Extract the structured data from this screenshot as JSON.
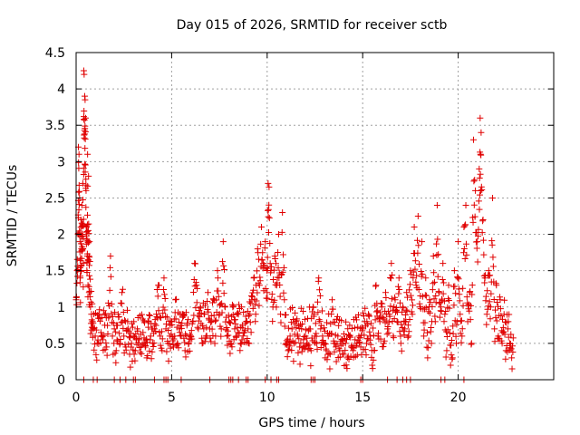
{
  "chart_data": {
    "type": "scatter",
    "title": "Day 015 of 2026, SRMTID for receiver sctb",
    "xlabel": "GPS time / hours",
    "ylabel": "SRMTID / TECUs",
    "xlim": [
      0,
      25
    ],
    "ylim": [
      0,
      4.5
    ],
    "xticks": [
      0,
      5,
      10,
      15,
      20
    ],
    "xtick_labels": [
      "0",
      "5",
      "10",
      "15",
      "20"
    ],
    "yticks": [
      0,
      0.5,
      1,
      1.5,
      2,
      2.5,
      3,
      3.5,
      4,
      4.5
    ],
    "ytick_labels": [
      "0",
      "0.5",
      "1",
      "1.5",
      "2",
      "2.5",
      "3",
      "3.5",
      "4",
      "4.5"
    ],
    "grid": true,
    "marker": "+",
    "color": "#e00000",
    "series": [
      {
        "name": "SRMTID",
        "points": [
          [
            0.0,
            1.1
          ],
          [
            0.05,
            1.5
          ],
          [
            0.1,
            2.0
          ],
          [
            0.12,
            3.2
          ],
          [
            0.15,
            3.1
          ],
          [
            0.18,
            2.5
          ],
          [
            0.2,
            1.9
          ],
          [
            0.22,
            1.4
          ],
          [
            0.25,
            2.2
          ],
          [
            0.28,
            1.8
          ],
          [
            0.3,
            2.4
          ],
          [
            0.33,
            2.0
          ],
          [
            0.35,
            2.7
          ],
          [
            0.38,
            1.6
          ],
          [
            0.4,
            4.25
          ],
          [
            0.42,
            4.2
          ],
          [
            0.45,
            3.9
          ],
          [
            0.47,
            3.85
          ],
          [
            0.5,
            3.6
          ],
          [
            0.52,
            2.6
          ],
          [
            0.55,
            2.1
          ],
          [
            0.58,
            1.7
          ],
          [
            0.6,
            3.1
          ],
          [
            0.62,
            1.3
          ],
          [
            0.65,
            2.8
          ],
          [
            0.68,
            1.2
          ],
          [
            0.7,
            1.9
          ],
          [
            0.75,
            1.0
          ],
          [
            0.8,
            0.9
          ],
          [
            0.85,
            0.8
          ],
          [
            0.9,
            0.7
          ],
          [
            1.0,
            0.6
          ],
          [
            1.1,
            0.5
          ],
          [
            1.2,
            0.9
          ],
          [
            1.3,
            0.65
          ],
          [
            1.4,
            0.55
          ],
          [
            1.5,
            0.75
          ],
          [
            1.6,
            0.45
          ],
          [
            1.7,
            0.85
          ],
          [
            1.8,
            1.7
          ],
          [
            1.9,
            0.6
          ],
          [
            2.0,
            0.7
          ],
          [
            2.1,
            0.4
          ],
          [
            2.2,
            0.9
          ],
          [
            2.3,
            0.5
          ],
          [
            2.4,
            1.2
          ],
          [
            2.5,
            0.6
          ],
          [
            2.6,
            0.45
          ],
          [
            2.7,
            0.8
          ],
          [
            2.8,
            0.35
          ],
          [
            2.9,
            0.5
          ],
          [
            3.0,
            0.6
          ],
          [
            3.1,
            0.4
          ],
          [
            3.2,
            0.7
          ],
          [
            3.3,
            0.55
          ],
          [
            3.4,
            0.45
          ],
          [
            3.5,
            0.65
          ],
          [
            3.6,
            0.5
          ],
          [
            3.7,
            0.3
          ],
          [
            3.8,
            0.8
          ],
          [
            3.9,
            0.6
          ],
          [
            4.0,
            0.5
          ],
          [
            4.1,
            0.7
          ],
          [
            4.2,
            0.9
          ],
          [
            4.3,
            1.3
          ],
          [
            4.4,
            0.6
          ],
          [
            4.5,
            0.4
          ],
          [
            4.6,
            1.4
          ],
          [
            4.7,
            0.7
          ],
          [
            4.8,
            0.5
          ],
          [
            4.9,
            0.6
          ],
          [
            5.0,
            0.8
          ],
          [
            5.1,
            0.45
          ],
          [
            5.2,
            1.1
          ],
          [
            5.3,
            0.5
          ],
          [
            5.4,
            0.7
          ],
          [
            5.5,
            0.6
          ],
          [
            5.6,
            0.9
          ],
          [
            5.7,
            0.4
          ],
          [
            5.8,
            0.75
          ],
          [
            5.9,
            0.5
          ],
          [
            6.0,
            0.6
          ],
          [
            6.1,
            0.8
          ],
          [
            6.2,
            1.6
          ],
          [
            6.3,
            1.3
          ],
          [
            6.4,
            0.7
          ],
          [
            6.5,
            1.0
          ],
          [
            6.6,
            0.5
          ],
          [
            6.7,
            0.9
          ],
          [
            6.8,
            0.6
          ],
          [
            6.9,
            1.2
          ],
          [
            7.0,
            0.7
          ],
          [
            7.1,
            0.8
          ],
          [
            7.2,
            1.1
          ],
          [
            7.3,
            0.6
          ],
          [
            7.4,
            1.5
          ],
          [
            7.5,
            0.9
          ],
          [
            7.6,
            0.7
          ],
          [
            7.7,
            1.9
          ],
          [
            7.8,
            1.0
          ],
          [
            7.9,
            0.6
          ],
          [
            8.0,
            0.8
          ],
          [
            8.1,
            0.5
          ],
          [
            8.2,
            1.0
          ],
          [
            8.3,
            0.7
          ],
          [
            8.4,
            0.6
          ],
          [
            8.5,
            0.9
          ],
          [
            8.6,
            0.5
          ],
          [
            8.7,
            0.75
          ],
          [
            8.8,
            0.65
          ],
          [
            8.9,
            0.8
          ],
          [
            9.0,
            0.7
          ],
          [
            9.1,
            0.9
          ],
          [
            9.2,
            1.1
          ],
          [
            9.3,
            1.4
          ],
          [
            9.4,
            0.9
          ],
          [
            9.5,
            1.8
          ],
          [
            9.6,
            1.3
          ],
          [
            9.7,
            2.1
          ],
          [
            9.8,
            1.6
          ],
          [
            9.9,
            1.9
          ],
          [
            10.0,
            1.2
          ],
          [
            10.05,
            2.7
          ],
          [
            10.1,
            2.65
          ],
          [
            10.2,
            1.5
          ],
          [
            10.3,
            1.0
          ],
          [
            10.4,
            1.7
          ],
          [
            10.5,
            1.3
          ],
          [
            10.6,
            2.0
          ],
          [
            10.7,
            0.9
          ],
          [
            10.8,
            2.3
          ],
          [
            10.9,
            1.1
          ],
          [
            11.0,
            0.5
          ],
          [
            11.1,
            0.4
          ],
          [
            11.2,
            0.6
          ],
          [
            11.3,
            0.7
          ],
          [
            11.4,
            0.5
          ],
          [
            11.5,
            0.8
          ],
          [
            11.6,
            0.6
          ],
          [
            11.7,
            0.45
          ],
          [
            11.8,
            0.7
          ],
          [
            11.9,
            0.55
          ],
          [
            12.0,
            0.6
          ],
          [
            12.1,
            0.5
          ],
          [
            12.2,
            0.7
          ],
          [
            12.3,
            0.4
          ],
          [
            12.4,
            1.0
          ],
          [
            12.5,
            0.6
          ],
          [
            12.6,
            0.5
          ],
          [
            12.7,
            1.4
          ],
          [
            12.8,
            0.7
          ],
          [
            12.9,
            0.6
          ],
          [
            13.0,
            0.5
          ],
          [
            13.1,
            0.4
          ],
          [
            13.2,
            0.6
          ],
          [
            13.3,
            0.35
          ],
          [
            13.4,
            1.1
          ],
          [
            13.5,
            0.5
          ],
          [
            13.6,
            0.45
          ],
          [
            13.7,
            0.6
          ],
          [
            13.8,
            0.4
          ],
          [
            13.9,
            0.55
          ],
          [
            14.0,
            0.35
          ],
          [
            14.1,
            0.5
          ],
          [
            14.2,
            0.3
          ],
          [
            14.3,
            0.6
          ],
          [
            14.4,
            0.45
          ],
          [
            14.5,
            0.4
          ],
          [
            14.6,
            0.55
          ],
          [
            14.7,
            0.5
          ],
          [
            14.8,
            0.6
          ],
          [
            14.9,
            0.45
          ],
          [
            15.0,
            0.7
          ],
          [
            15.1,
            0.8
          ],
          [
            15.2,
            0.5
          ],
          [
            15.3,
            0.9
          ],
          [
            15.4,
            0.6
          ],
          [
            15.5,
            0.2
          ],
          [
            15.6,
            0.4
          ],
          [
            15.7,
            1.3
          ],
          [
            15.8,
            0.6
          ],
          [
            15.9,
            0.8
          ],
          [
            16.0,
            1.0
          ],
          [
            16.1,
            0.5
          ],
          [
            16.2,
            1.2
          ],
          [
            16.3,
            0.7
          ],
          [
            16.4,
            0.9
          ],
          [
            16.5,
            1.6
          ],
          [
            16.6,
            0.6
          ],
          [
            16.7,
            1.1
          ],
          [
            16.8,
            0.8
          ],
          [
            16.9,
            1.4
          ],
          [
            17.0,
            0.5
          ],
          [
            17.1,
            1.0
          ],
          [
            17.2,
            0.7
          ],
          [
            17.3,
            1.2
          ],
          [
            17.4,
            0.6
          ],
          [
            17.5,
            1.5
          ],
          [
            17.6,
            0.9
          ],
          [
            17.7,
            2.1
          ],
          [
            17.8,
            1.3
          ],
          [
            17.9,
            2.25
          ],
          [
            18.0,
            1.0
          ],
          [
            18.1,
            1.9
          ],
          [
            18.2,
            0.6
          ],
          [
            18.3,
            1.4
          ],
          [
            18.4,
            0.3
          ],
          [
            18.5,
            1.1
          ],
          [
            18.6,
            0.5
          ],
          [
            18.7,
            1.7
          ],
          [
            18.8,
            0.8
          ],
          [
            18.9,
            2.4
          ],
          [
            19.0,
            1.2
          ],
          [
            19.1,
            1.0
          ],
          [
            19.2,
            1.6
          ],
          [
            19.3,
            0.9
          ],
          [
            19.4,
            0.4
          ],
          [
            19.5,
            1.3
          ],
          [
            19.6,
            0.2
          ],
          [
            19.7,
            0.3
          ],
          [
            19.8,
            1.5
          ],
          [
            19.9,
            0.5
          ],
          [
            20.0,
            1.9
          ],
          [
            20.1,
            0.9
          ],
          [
            20.2,
            0.6
          ],
          [
            20.3,
            2.1
          ],
          [
            20.4,
            2.4
          ],
          [
            20.5,
            0.8
          ],
          [
            20.6,
            1.2
          ],
          [
            20.7,
            0.5
          ],
          [
            20.8,
            3.3
          ],
          [
            20.9,
            2.6
          ],
          [
            21.0,
            1.9
          ],
          [
            21.1,
            2.9
          ],
          [
            21.15,
            3.6
          ],
          [
            21.2,
            3.4
          ],
          [
            21.3,
            2.2
          ],
          [
            21.4,
            1.4
          ],
          [
            21.5,
            0.9
          ],
          [
            21.6,
            1.5
          ],
          [
            21.7,
            1.0
          ],
          [
            21.8,
            2.5
          ],
          [
            21.9,
            0.7
          ],
          [
            22.0,
            1.3
          ],
          [
            22.1,
            0.6
          ],
          [
            22.2,
            1.1
          ],
          [
            22.3,
            0.5
          ],
          [
            22.4,
            0.9
          ],
          [
            22.5,
            0.4
          ],
          [
            22.6,
            0.7
          ],
          [
            22.7,
            0.5
          ],
          [
            22.8,
            0.3
          ]
        ],
        "zero_points": [
          0.4,
          0.9,
          1.1,
          2.0,
          2.3,
          2.6,
          3.0,
          3.1,
          4.1,
          4.6,
          4.7,
          4.8,
          5.5,
          7.0,
          8.0,
          8.1,
          8.2,
          8.5,
          8.9,
          9.0,
          9.9,
          10.2,
          10.5,
          10.6,
          12.3,
          12.4,
          12.5,
          14.9,
          15.0,
          16.3,
          16.8,
          17.1,
          17.3,
          17.5,
          19.1,
          19.3,
          20.3
        ]
      }
    ]
  }
}
